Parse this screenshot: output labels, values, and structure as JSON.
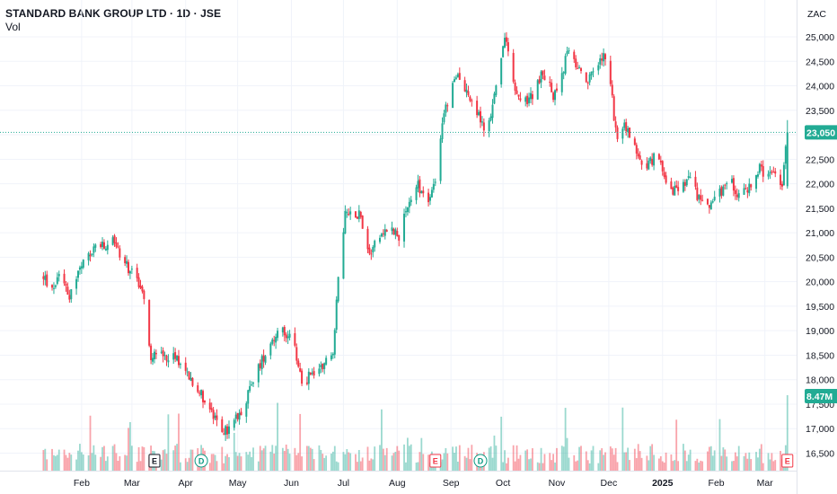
{
  "header": {
    "title": "STANDARD BANK GROUP LTD · 1D · JSE",
    "volume_label": "Vol"
  },
  "price_axis": {
    "currency": "ZAC"
  },
  "chart_data": {
    "type": "candlestick",
    "title": "STANDARD BANK GROUP LTD · 1D · JSE",
    "ylim": [
      16200,
      25400
    ],
    "y_ticks": [
      16500,
      17000,
      17500,
      18000,
      18500,
      19000,
      19500,
      20000,
      20500,
      21000,
      21500,
      22000,
      22500,
      23000,
      23500,
      24000,
      24500,
      25000
    ],
    "y_tick_labels": [
      "16,500",
      "17,000",
      "17,500",
      "18,000",
      "18,500",
      "19,000",
      "19,500",
      "20,000",
      "20,500",
      "21,000",
      "21,500",
      "22,000",
      "22,500",
      "23,000",
      "23,500",
      "24,000",
      "24,500",
      "25,000"
    ],
    "x_ticks": [
      {
        "label": "Feb",
        "date": "2024-02-01"
      },
      {
        "label": "Mar",
        "date": "2024-03-01"
      },
      {
        "label": "Apr",
        "date": "2024-04-01"
      },
      {
        "label": "May",
        "date": "2024-05-01"
      },
      {
        "label": "Jun",
        "date": "2024-06-01"
      },
      {
        "label": "Jul",
        "date": "2024-07-01"
      },
      {
        "label": "Aug",
        "date": "2024-08-01"
      },
      {
        "label": "Sep",
        "date": "2024-09-01"
      },
      {
        "label": "Oct",
        "date": "2024-10-01"
      },
      {
        "label": "Nov",
        "date": "2024-11-01"
      },
      {
        "label": "Dec",
        "date": "2024-12-01"
      },
      {
        "label": "2025",
        "date": "2025-01-01",
        "bold": true
      },
      {
        "label": "Feb",
        "date": "2025-02-01"
      },
      {
        "label": "Mar",
        "date": "2025-03-01"
      }
    ],
    "price_path": [
      [
        "2024-01-10",
        20100
      ],
      [
        "2024-01-15",
        19800
      ],
      [
        "2024-01-20",
        20300
      ],
      [
        "2024-01-25",
        19700
      ],
      [
        "2024-01-30",
        20200
      ],
      [
        "2024-02-05",
        20500
      ],
      [
        "2024-02-10",
        20800
      ],
      [
        "2024-02-15",
        20650
      ],
      [
        "2024-02-20",
        20850
      ],
      [
        "2024-02-25",
        20400
      ],
      [
        "2024-03-01",
        20200
      ],
      [
        "2024-03-05",
        20000
      ],
      [
        "2024-03-08",
        19600
      ],
      [
        "2024-03-12",
        18500
      ],
      [
        "2024-03-20",
        18500
      ],
      [
        "2024-03-27",
        18450
      ],
      [
        "2024-04-03",
        18100
      ],
      [
        "2024-04-10",
        17700
      ],
      [
        "2024-04-15",
        17400
      ],
      [
        "2024-04-20",
        17000
      ],
      [
        "2024-04-25",
        16950
      ],
      [
        "2024-04-28",
        17100
      ],
      [
        "2024-05-05",
        17500
      ],
      [
        "2024-05-10",
        18000
      ],
      [
        "2024-05-15",
        18400
      ],
      [
        "2024-05-20",
        18800
      ],
      [
        "2024-05-25",
        19000
      ],
      [
        "2024-05-30",
        18900
      ],
      [
        "2024-06-03",
        18600
      ],
      [
        "2024-06-08",
        17800
      ],
      [
        "2024-06-12",
        18200
      ],
      [
        "2024-06-16",
        18100
      ],
      [
        "2024-06-20",
        18400
      ],
      [
        "2024-06-25",
        18600
      ],
      [
        "2024-06-28",
        20000
      ],
      [
        "2024-07-02",
        21400
      ],
      [
        "2024-07-10",
        21400
      ],
      [
        "2024-07-16",
        20600
      ],
      [
        "2024-07-22",
        21000
      ],
      [
        "2024-07-28",
        21100
      ],
      [
        "2024-08-02",
        20950
      ],
      [
        "2024-08-08",
        21600
      ],
      [
        "2024-08-12",
        22000
      ],
      [
        "2024-08-16",
        21800
      ],
      [
        "2024-08-20",
        21700
      ],
      [
        "2024-08-24",
        22100
      ],
      [
        "2024-08-27",
        23300
      ],
      [
        "2024-08-31",
        23800
      ],
      [
        "2024-09-05",
        24200
      ],
      [
        "2024-09-09",
        24000
      ],
      [
        "2024-09-13",
        23600
      ],
      [
        "2024-09-17",
        23400
      ],
      [
        "2024-09-21",
        23000
      ],
      [
        "2024-09-25",
        23600
      ],
      [
        "2024-09-28",
        24200
      ],
      [
        "2024-10-02",
        25000
      ],
      [
        "2024-10-04",
        24600
      ],
      [
        "2024-10-08",
        23900
      ],
      [
        "2024-10-12",
        23600
      ],
      [
        "2024-10-18",
        23800
      ],
      [
        "2024-10-24",
        24300
      ],
      [
        "2024-10-30",
        23800
      ],
      [
        "2024-11-04",
        24200
      ],
      [
        "2024-11-08",
        24800
      ],
      [
        "2024-11-12",
        24400
      ],
      [
        "2024-11-18",
        24000
      ],
      [
        "2024-11-22",
        24300
      ],
      [
        "2024-11-28",
        24600
      ],
      [
        "2024-12-02",
        24000
      ],
      [
        "2024-12-06",
        22800
      ],
      [
        "2024-12-10",
        23200
      ],
      [
        "2024-12-14",
        22900
      ],
      [
        "2024-12-18",
        22600
      ],
      [
        "2024-12-22",
        22300
      ],
      [
        "2024-12-28",
        22600
      ],
      [
        "2025-01-02",
        22200
      ],
      [
        "2025-01-06",
        21900
      ],
      [
        "2025-01-10",
        21800
      ],
      [
        "2025-01-16",
        22100
      ],
      [
        "2025-01-22",
        21700
      ],
      [
        "2025-01-28",
        21600
      ],
      [
        "2025-02-03",
        21800
      ],
      [
        "2025-02-09",
        22100
      ],
      [
        "2025-02-15",
        21700
      ],
      [
        "2025-02-21",
        22000
      ],
      [
        "2025-02-26",
        22300
      ],
      [
        "2025-03-02",
        22100
      ],
      [
        "2025-03-07",
        22200
      ],
      [
        "2025-03-11",
        21950
      ],
      [
        "2025-03-14",
        23050
      ]
    ],
    "last_price": {
      "value": 23050,
      "label": "23,050",
      "color": "#22ab94"
    },
    "last_volume": {
      "label": "8.47M",
      "color": "#22ab94"
    },
    "events": [
      {
        "type": "E",
        "date": "2024-03-14",
        "color": "#131722"
      },
      {
        "type": "D",
        "date": "2024-04-10",
        "color": "#089981"
      },
      {
        "type": "E",
        "date": "2024-08-23",
        "color": "#f23645"
      },
      {
        "type": "D",
        "date": "2024-09-18",
        "color": "#089981"
      },
      {
        "type": "E",
        "date": "2025-03-14",
        "color": "#f23645"
      }
    ],
    "colors": {
      "up": "#22ab94",
      "down": "#f23645",
      "grid": "#f0f3fa"
    },
    "grid": true
  }
}
